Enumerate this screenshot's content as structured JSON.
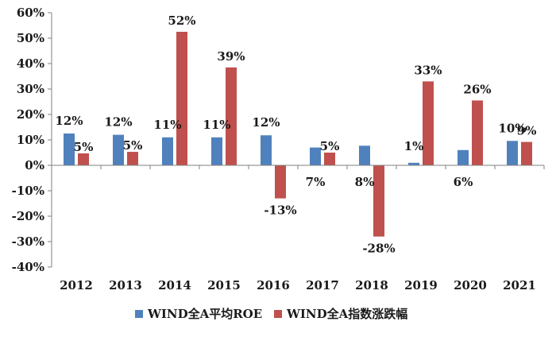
{
  "chart_data": {
    "type": "bar",
    "categories": [
      "2012",
      "2013",
      "2014",
      "2015",
      "2016",
      "2017",
      "2018",
      "2019",
      "2020",
      "2021"
    ],
    "series": [
      {
        "name": "WIND全A平均ROE",
        "color": "#4f81bd",
        "values": [
          12.5,
          12,
          11,
          11,
          11.8,
          7,
          7.7,
          1,
          6,
          9.6
        ],
        "labels": [
          "12%",
          "12%",
          "11%",
          "11%",
          "12%",
          "7%",
          "8%",
          "1%",
          "6%",
          "10%"
        ]
      },
      {
        "name": "WIND全A指数涨跌幅",
        "color": "#c0504d",
        "values": [
          4.7,
          5.3,
          52.5,
          38.5,
          -13,
          5,
          -28,
          33,
          25.5,
          9.2
        ],
        "labels": [
          "5%",
          "5%",
          "52%",
          "39%",
          "-13%",
          "5%",
          "-28%",
          "33%",
          "26%",
          "9%"
        ]
      }
    ],
    "ylim": [
      -40,
      60
    ],
    "yticks": [
      60,
      50,
      40,
      30,
      20,
      10,
      0,
      -10,
      -20,
      -30,
      -40
    ],
    "ytick_labels": [
      "60%",
      "50%",
      "40%",
      "30%",
      "20%",
      "10%",
      "0%",
      "-10%",
      "-20%",
      "-30%",
      "-40%"
    ],
    "legend_position": "bottom",
    "grid": false
  }
}
